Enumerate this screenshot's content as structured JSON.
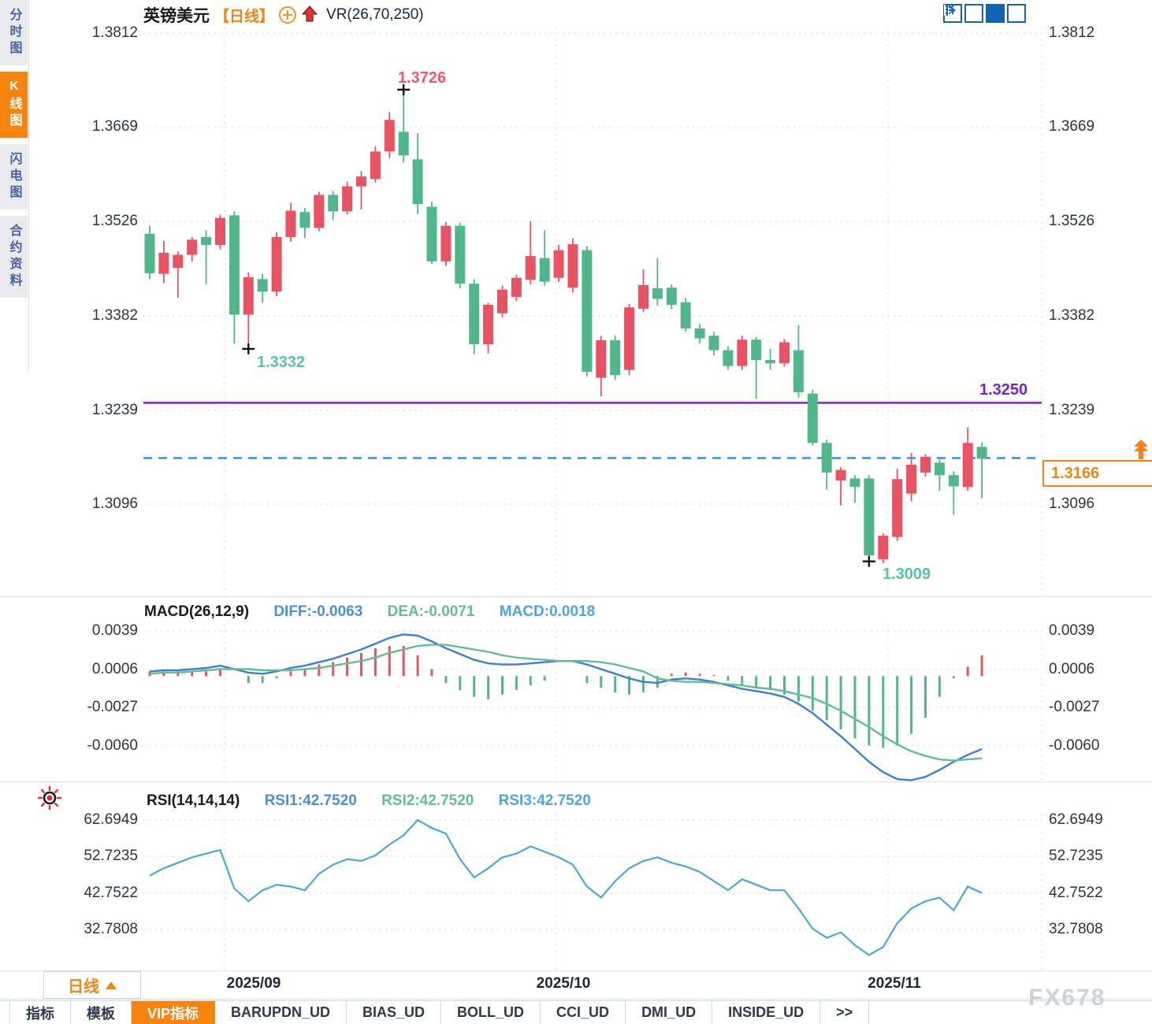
{
  "header": {
    "symbol": "英镑美元",
    "period_bracket": "【日线】",
    "vr_label": "VR(26,70,250)"
  },
  "sidebar": {
    "items": [
      {
        "label": "分时图",
        "active": false
      },
      {
        "label": "K线图",
        "active": true
      },
      {
        "label": "闪电图",
        "active": false
      },
      {
        "label": "合约资料",
        "active": false
      }
    ]
  },
  "macd_header": {
    "title": "MACD(26,12,9)",
    "diff_label": "DIFF:-0.0063",
    "dea_label": "DEA:-0.0071",
    "macd_label": "MACD:0.0018"
  },
  "rsi_header": {
    "title": "RSI(14,14,14)",
    "rsi1_label": "RSI1:42.7520",
    "rsi2_label": "RSI2:42.7520",
    "rsi3_label": "RSI3:42.7520"
  },
  "annotations": {
    "high_label": "1.3726",
    "low1_label": "1.3332",
    "low2_label": "1.3009",
    "hline_label": "1.3250",
    "last_price": "1.3166"
  },
  "bottom": {
    "period_label": "日线",
    "tabs": [
      {
        "label": "指标",
        "active": false
      },
      {
        "label": "模板",
        "active": false
      },
      {
        "label": "VIP指标",
        "active": true
      },
      {
        "label": "BARUPDN_UD",
        "active": false
      },
      {
        "label": "BIAS_UD",
        "active": false
      },
      {
        "label": "BOLL_UD",
        "active": false
      },
      {
        "label": "CCI_UD",
        "active": false
      },
      {
        "label": "DMI_UD",
        "active": false
      },
      {
        "label": "INSIDE_UD",
        "active": false
      },
      {
        "label": ">>",
        "active": false
      }
    ],
    "watermark": "FX678"
  },
  "colors": {
    "up": "#e95361",
    "down": "#4fb78a",
    "hline": "#7d1fc9",
    "last_line": "#1f86e0",
    "accent": "#f7830e",
    "diff": "#3b7fd4",
    "dea": "#5fbe92",
    "macd_text": "#4aa6e0",
    "rsi_line": "#47a9da",
    "annotation_teal": "#53c3ab",
    "annotation_red": "#f2566a"
  },
  "chart_data": {
    "type": "candlestick",
    "title": "英镑美元 日线 (GBP/USD daily) with MACD and RSI sub-charts",
    "x_ticks": [
      "2025/09",
      "2025/10",
      "2025/11"
    ],
    "price_axis": {
      "ticks": [
        "1.3812",
        "1.3669",
        "1.3526",
        "1.3382",
        "1.3239",
        "1.3096"
      ],
      "max": 1.3812,
      "min": 1.3096
    },
    "levels": {
      "horizontal_line": 1.325,
      "last_price": 1.3166
    },
    "markers": {
      "high": {
        "index": 18,
        "price": 1.3726
      },
      "low1": {
        "index": 7,
        "price": 1.3332
      },
      "low2": {
        "index": 51,
        "price": 1.3009
      }
    },
    "candles": [
      [
        1.3507,
        1.3519,
        1.3438,
        1.3447
      ],
      [
        1.3446,
        1.3496,
        1.3432,
        1.3478
      ],
      [
        1.3455,
        1.348,
        1.341,
        1.3475
      ],
      [
        1.3475,
        1.3502,
        1.3465,
        1.3498
      ],
      [
        1.3502,
        1.3512,
        1.343,
        1.349
      ],
      [
        1.349,
        1.3536,
        1.3483,
        1.3531
      ],
      [
        1.3535,
        1.3541,
        1.334,
        1.3384
      ],
      [
        1.3384,
        1.3448,
        1.3332,
        1.3441
      ],
      [
        1.3438,
        1.3446,
        1.3402,
        1.3419
      ],
      [
        1.3419,
        1.3509,
        1.3412,
        1.3502
      ],
      [
        1.3502,
        1.3554,
        1.3495,
        1.3542
      ],
      [
        1.354,
        1.3546,
        1.35,
        1.3516
      ],
      [
        1.3516,
        1.3571,
        1.3511,
        1.3566
      ],
      [
        1.3566,
        1.3572,
        1.3528,
        1.3541
      ],
      [
        1.3541,
        1.3586,
        1.3536,
        1.3579
      ],
      [
        1.3579,
        1.3602,
        1.3544,
        1.3594
      ],
      [
        1.359,
        1.364,
        1.3585,
        1.3632
      ],
      [
        1.3632,
        1.3692,
        1.3622,
        1.368
      ],
      [
        1.3662,
        1.3726,
        1.3615,
        1.3626
      ],
      [
        1.362,
        1.366,
        1.3537,
        1.3552
      ],
      [
        1.3548,
        1.3556,
        1.3461,
        1.3465
      ],
      [
        1.3465,
        1.3525,
        1.3458,
        1.3519
      ],
      [
        1.3519,
        1.3524,
        1.3424,
        1.3431
      ],
      [
        1.3431,
        1.3438,
        1.3324,
        1.3339
      ],
      [
        1.3339,
        1.3402,
        1.3325,
        1.3399
      ],
      [
        1.3386,
        1.3428,
        1.338,
        1.3422
      ],
      [
        1.3411,
        1.3444,
        1.3405,
        1.344
      ],
      [
        1.3437,
        1.3526,
        1.343,
        1.3473
      ],
      [
        1.347,
        1.3512,
        1.3428,
        1.3434
      ],
      [
        1.344,
        1.349,
        1.3434,
        1.3482
      ],
      [
        1.3425,
        1.35,
        1.3418,
        1.3491
      ],
      [
        1.3482,
        1.3488,
        1.329,
        1.3297
      ],
      [
        1.3288,
        1.3352,
        1.326,
        1.3345
      ],
      [
        1.3345,
        1.3352,
        1.3285,
        1.3292
      ],
      [
        1.33,
        1.34,
        1.3292,
        1.3395
      ],
      [
        1.3393,
        1.3453,
        1.3388,
        1.3429
      ],
      [
        1.3424,
        1.347,
        1.3398,
        1.3408
      ],
      [
        1.3425,
        1.343,
        1.3392,
        1.3399
      ],
      [
        1.3403,
        1.341,
        1.3358,
        1.3363
      ],
      [
        1.3363,
        1.337,
        1.334,
        1.3348
      ],
      [
        1.3352,
        1.3358,
        1.3322,
        1.333
      ],
      [
        1.333,
        1.3336,
        1.33,
        1.3306
      ],
      [
        1.3306,
        1.3352,
        1.33,
        1.3346
      ],
      [
        1.3346,
        1.335,
        1.3256,
        1.3315
      ],
      [
        1.3315,
        1.3332,
        1.33,
        1.331
      ],
      [
        1.331,
        1.3347,
        1.3305,
        1.3342
      ],
      [
        1.333,
        1.3368,
        1.3258,
        1.3266
      ],
      [
        1.3264,
        1.327,
        1.3185,
        1.3189
      ],
      [
        1.3189,
        1.3194,
        1.3118,
        1.3144
      ],
      [
        1.3132,
        1.3152,
        1.3094,
        1.3148
      ],
      [
        1.3135,
        1.314,
        1.3098,
        1.3122
      ],
      [
        1.3135,
        1.314,
        1.3009,
        1.3018
      ],
      [
        1.3012,
        1.3052,
        1.3006,
        1.3048
      ],
      [
        1.3046,
        1.315,
        1.304,
        1.3134
      ],
      [
        1.3112,
        1.3174,
        1.31,
        1.3156
      ],
      [
        1.3144,
        1.3172,
        1.3138,
        1.3168
      ],
      [
        1.3159,
        1.3164,
        1.3116,
        1.314
      ],
      [
        1.314,
        1.3146,
        1.308,
        1.3123
      ],
      [
        1.3122,
        1.3213,
        1.3116,
        1.3189
      ],
      [
        1.3183,
        1.319,
        1.3105,
        1.3165
      ]
    ],
    "macd": {
      "params": "26,12,9",
      "ticks": [
        "0.0039",
        "0.0006",
        "-0.0027",
        "-0.0060"
      ],
      "diff": [
        0.0004,
        0.0005,
        0.0005,
        0.0006,
        0.0007,
        0.0009,
        0.0006,
        0.0003,
        0.0002,
        0.0004,
        0.0007,
        0.0009,
        0.0012,
        0.0015,
        0.0019,
        0.0023,
        0.0028,
        0.0033,
        0.0036,
        0.0035,
        0.003,
        0.0024,
        0.0019,
        0.0014,
        0.0011,
        0.001,
        0.001,
        0.0011,
        0.0012,
        0.0013,
        0.0013,
        0.001,
        0.0006,
        0.0002,
        -0.0002,
        -0.0005,
        -0.0006,
        -0.0003,
        -0.0002,
        -0.0003,
        -0.0005,
        -0.0008,
        -0.0011,
        -0.0013,
        -0.0015,
        -0.0018,
        -0.0024,
        -0.0032,
        -0.0042,
        -0.0052,
        -0.0063,
        -0.0074,
        -0.0083,
        -0.0089,
        -0.009,
        -0.0087,
        -0.0081,
        -0.0074,
        -0.0068,
        -0.0063
      ],
      "dea": [
        0.0002,
        0.0003,
        0.0003,
        0.0004,
        0.0005,
        0.0006,
        0.0006,
        0.0006,
        0.0005,
        0.0005,
        0.0005,
        0.0006,
        0.0007,
        0.0009,
        0.0011,
        0.0013,
        0.0016,
        0.002,
        0.0023,
        0.0026,
        0.0027,
        0.0027,
        0.0025,
        0.0023,
        0.0021,
        0.0018,
        0.0016,
        0.0015,
        0.0014,
        0.0013,
        0.0013,
        0.0013,
        0.0012,
        0.001,
        0.0007,
        0.0004,
        -0.0002,
        -0.0004,
        -0.0005,
        -0.0005,
        -0.0006,
        -0.0007,
        -0.0008,
        -0.001,
        -0.0011,
        -0.0013,
        -0.0016,
        -0.0019,
        -0.0024,
        -0.003,
        -0.0037,
        -0.0044,
        -0.0052,
        -0.0059,
        -0.0065,
        -0.0069,
        -0.0072,
        -0.0073,
        -0.0072,
        -0.0071
      ],
      "hist": [
        0.0004,
        0.0004,
        0.0004,
        0.0004,
        0.0004,
        0.0006,
        0.0,
        -0.0006,
        -0.0006,
        -0.0002,
        0.0004,
        0.0006,
        0.001,
        0.0012,
        0.0016,
        0.002,
        0.0024,
        0.0026,
        0.0026,
        0.0018,
        0.0006,
        -0.0006,
        -0.0012,
        -0.0018,
        -0.002,
        -0.0016,
        -0.0012,
        -0.0008,
        -0.0004,
        0.0,
        0.0,
        -0.0006,
        -0.001,
        -0.0014,
        -0.0016,
        -0.0014,
        -0.001,
        0.0002,
        0.0003,
        0.0002,
        0.0001,
        -0.0004,
        -0.0008,
        -0.001,
        -0.0012,
        -0.0016,
        -0.0022,
        -0.003,
        -0.0038,
        -0.0046,
        -0.0054,
        -0.006,
        -0.0062,
        -0.006,
        -0.005,
        -0.0036,
        -0.0018,
        -0.0002,
        0.0008,
        0.0018
      ]
    },
    "rsi": {
      "params": "14,14,14",
      "ticks": [
        "62.6949",
        "52.7235",
        "42.7522",
        "32.7808"
      ],
      "values": [
        47.5,
        49.5,
        51,
        52.5,
        53.5,
        54.5,
        44,
        40.5,
        43.5,
        45,
        44.5,
        43.5,
        48,
        50.5,
        52,
        51.5,
        53,
        56,
        58.5,
        62.7,
        60.5,
        59,
        52,
        47,
        49.5,
        52.5,
        53.5,
        55.5,
        54,
        52.5,
        50.5,
        44.5,
        41.5,
        46,
        49.5,
        51.5,
        52.5,
        51,
        50,
        48.5,
        46,
        43.5,
        46.5,
        45,
        43.5,
        43.5,
        38.5,
        33,
        30.5,
        32,
        28.5,
        25.8,
        28,
        34.5,
        38.5,
        40.5,
        41.5,
        38,
        44.5,
        42.75
      ]
    }
  }
}
